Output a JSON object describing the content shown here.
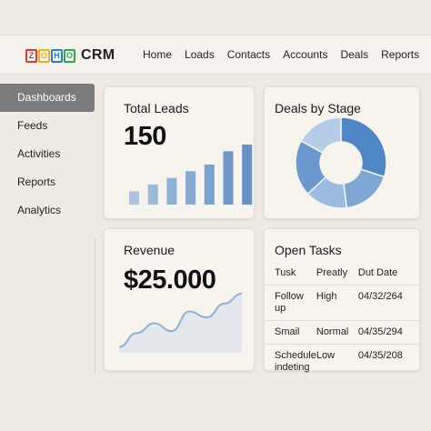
{
  "header": {
    "logo_letters": [
      "Z",
      "O",
      "H",
      "O"
    ],
    "logo_colors": [
      "#e03a30",
      "#f2b01e",
      "#2a7ad6",
      "#2ea84f"
    ],
    "logo_text": "CRM",
    "nav": [
      "Home",
      "Loads",
      "Contacts",
      "Accounts",
      "Deals",
      "Reports"
    ]
  },
  "sidebar": {
    "items": [
      {
        "label": "Dashboards",
        "active": true
      },
      {
        "label": "Feeds",
        "active": false
      },
      {
        "label": "Activities",
        "active": false
      },
      {
        "label": "Reports",
        "active": false
      },
      {
        "label": "Analytics",
        "active": false
      }
    ]
  },
  "cards": {
    "total_leads": {
      "title": "Total Leads",
      "value": "150",
      "chart_data": {
        "type": "bar",
        "values": [
          2,
          3,
          4,
          5,
          6,
          8,
          9
        ],
        "colors": [
          "#a9c3e0",
          "#9cbadc",
          "#8fb0d7",
          "#85a9d3",
          "#7aa1cf",
          "#6f98ca",
          "#6690c6"
        ]
      }
    },
    "deals_by_stage": {
      "title": "Deals by Stage",
      "chart_data": {
        "type": "pie",
        "donut": true,
        "values": [
          30,
          18,
          15,
          20,
          17
        ],
        "colors": [
          "#4f86c6",
          "#7ea7d6",
          "#9bbbe0",
          "#6a98cf",
          "#b6cde8"
        ]
      }
    },
    "revenue": {
      "title": "Revenue",
      "value": "$25.000",
      "chart_data": {
        "type": "area",
        "values": [
          3,
          10,
          15,
          11,
          21,
          18,
          25,
          30
        ],
        "line_color": "#8fb0d7",
        "fill_color": "#e4e7eb"
      }
    },
    "open_tasks": {
      "title": "Open Tasks",
      "columns": [
        "Tusk",
        "Preatly",
        "Dut Date"
      ],
      "rows": [
        {
          "task": "Follow up",
          "priority": "High",
          "date": "04/32/264"
        },
        {
          "task": "Smail",
          "priority": "Normal",
          "date": "04/35/294"
        },
        {
          "task": "Schedule indeting",
          "priority": "Low",
          "date": "04/35/208"
        }
      ]
    }
  }
}
